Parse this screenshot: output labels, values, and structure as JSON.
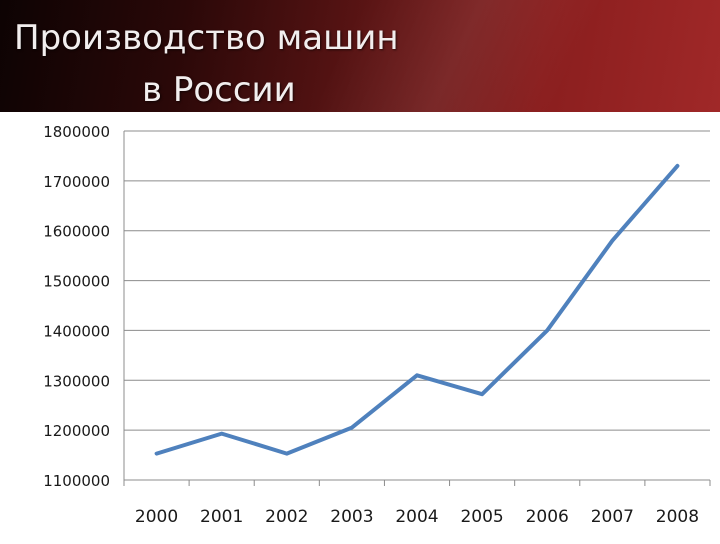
{
  "slide": {
    "title_line1": "Производство машин",
    "title_line2": "в России"
  },
  "colors": {
    "header_dark": "#0d0303",
    "header_red": "#a02828",
    "series_line": "#4f81bd",
    "gridline": "#8c8c8c"
  },
  "chart_data": {
    "type": "line",
    "title": "",
    "xlabel": "",
    "ylabel": "",
    "categories": [
      "2000",
      "2001",
      "2002",
      "2003",
      "2004",
      "2005",
      "2006",
      "2007",
      "2008"
    ],
    "series": [
      {
        "values": [
          1153000,
          1193000,
          1153000,
          1205000,
          1310000,
          1272000,
          1400000,
          1580000,
          1730000
        ]
      }
    ],
    "ylim": [
      1100000,
      1800000
    ],
    "yticks": [
      "1100000",
      "1200000",
      "1300000",
      "1400000",
      "1500000",
      "1600000",
      "1700000",
      "1800000"
    ],
    "grid": true,
    "legend": "none"
  }
}
